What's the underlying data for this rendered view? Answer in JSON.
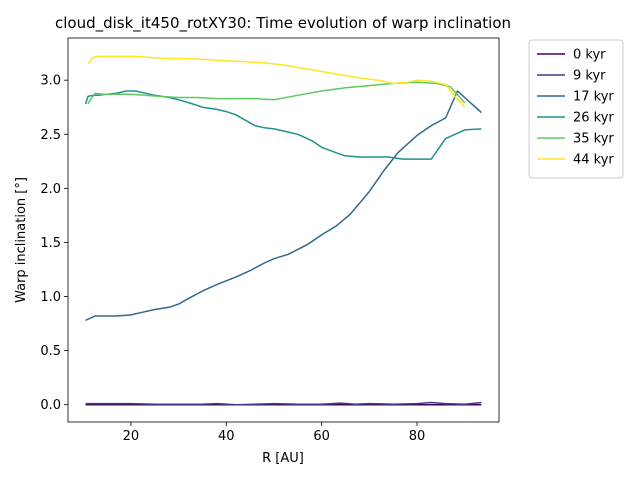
{
  "chart_data": {
    "type": "line",
    "title": "cloud_disk_it450_rotXY30: Time evolution of warp inclination",
    "xlabel": "R [AU]",
    "ylabel": "Warp inclination [°]",
    "xlim": [
      6.8,
      97.2
    ],
    "ylim": [
      -0.16,
      3.39
    ],
    "xticks": [
      20,
      40,
      60,
      80
    ],
    "yticks": [
      0.0,
      0.5,
      1.0,
      1.5,
      2.0,
      2.5,
      3.0
    ],
    "grid": false,
    "legend_position": "outside-top-right",
    "series": [
      {
        "name": "0 kyr",
        "color": "#440154",
        "x": [
          10.5,
          20,
          30,
          40,
          50,
          60,
          70,
          80,
          90,
          93.5
        ],
        "y": [
          0.0,
          0.0,
          0.0,
          0.0,
          0.0,
          0.0,
          0.0,
          0.0,
          0.0,
          0.0
        ]
      },
      {
        "name": "9 kyr",
        "color": "#443983",
        "x": [
          10.5,
          15,
          20,
          25,
          30,
          35,
          38,
          42,
          46,
          50,
          55,
          60,
          64,
          67,
          70,
          75,
          80,
          83,
          86,
          90,
          93.5
        ],
        "y": [
          0.01,
          0.01,
          0.01,
          0.005,
          0.005,
          0.005,
          0.01,
          0.0,
          0.005,
          0.01,
          0.005,
          0.005,
          0.015,
          0.005,
          0.01,
          0.005,
          0.01,
          0.02,
          0.01,
          0.005,
          0.02
        ]
      },
      {
        "name": "17 kyr",
        "color": "#31688e",
        "x": [
          10.5,
          12.5,
          15,
          17,
          20,
          22,
          25,
          28,
          30,
          32,
          35,
          38,
          42,
          45,
          48,
          50,
          53,
          57,
          60,
          63,
          66,
          70,
          73,
          76,
          80,
          83,
          86,
          88.5,
          93.5
        ],
        "y": [
          0.78,
          0.82,
          0.82,
          0.82,
          0.83,
          0.85,
          0.88,
          0.9,
          0.93,
          0.98,
          1.05,
          1.11,
          1.18,
          1.24,
          1.31,
          1.35,
          1.39,
          1.48,
          1.57,
          1.65,
          1.76,
          1.97,
          2.16,
          2.33,
          2.49,
          2.58,
          2.65,
          2.9,
          2.7
        ]
      },
      {
        "name": "26 kyr",
        "color": "#21918c",
        "x": [
          10.5,
          11,
          12,
          13,
          15,
          17,
          19,
          21,
          23,
          25,
          28,
          30,
          33,
          35,
          38,
          40,
          42,
          44,
          46,
          48,
          50,
          52,
          55,
          58,
          60,
          63,
          65,
          68,
          70,
          72,
          74,
          77,
          80,
          83,
          86,
          90,
          93.5
        ],
        "y": [
          2.78,
          2.85,
          2.86,
          2.86,
          2.87,
          2.88,
          2.9,
          2.9,
          2.88,
          2.86,
          2.84,
          2.82,
          2.78,
          2.75,
          2.73,
          2.71,
          2.68,
          2.63,
          2.58,
          2.56,
          2.55,
          2.53,
          2.5,
          2.44,
          2.38,
          2.33,
          2.3,
          2.29,
          2.29,
          2.29,
          2.29,
          2.27,
          2.27,
          2.27,
          2.46,
          2.54,
          2.55
        ]
      },
      {
        "name": "35 kyr",
        "color": "#5ec962",
        "x": [
          11,
          11.5,
          12.5,
          14,
          16,
          18,
          20,
          23,
          26,
          30,
          34,
          38,
          42,
          46,
          50,
          55,
          60,
          65,
          70,
          75,
          80,
          84,
          87,
          90
        ],
        "y": [
          2.78,
          2.82,
          2.88,
          2.87,
          2.87,
          2.87,
          2.87,
          2.86,
          2.85,
          2.84,
          2.84,
          2.83,
          2.83,
          2.83,
          2.82,
          2.86,
          2.9,
          2.93,
          2.95,
          2.97,
          2.98,
          2.97,
          2.94,
          2.79
        ]
      },
      {
        "name": "44 kyr",
        "color": "#fde725",
        "x": [
          11,
          12,
          13,
          15,
          18,
          21,
          24,
          28,
          32,
          36,
          40,
          44,
          48,
          52,
          56,
          60,
          64,
          68,
          72,
          75,
          78,
          80,
          83,
          86,
          88,
          90
        ],
        "y": [
          3.15,
          3.21,
          3.22,
          3.22,
          3.22,
          3.22,
          3.21,
          3.2,
          3.2,
          3.19,
          3.18,
          3.17,
          3.16,
          3.14,
          3.11,
          3.08,
          3.05,
          3.02,
          3.0,
          2.97,
          2.98,
          3.0,
          2.99,
          2.96,
          2.85,
          2.75
        ]
      }
    ]
  }
}
